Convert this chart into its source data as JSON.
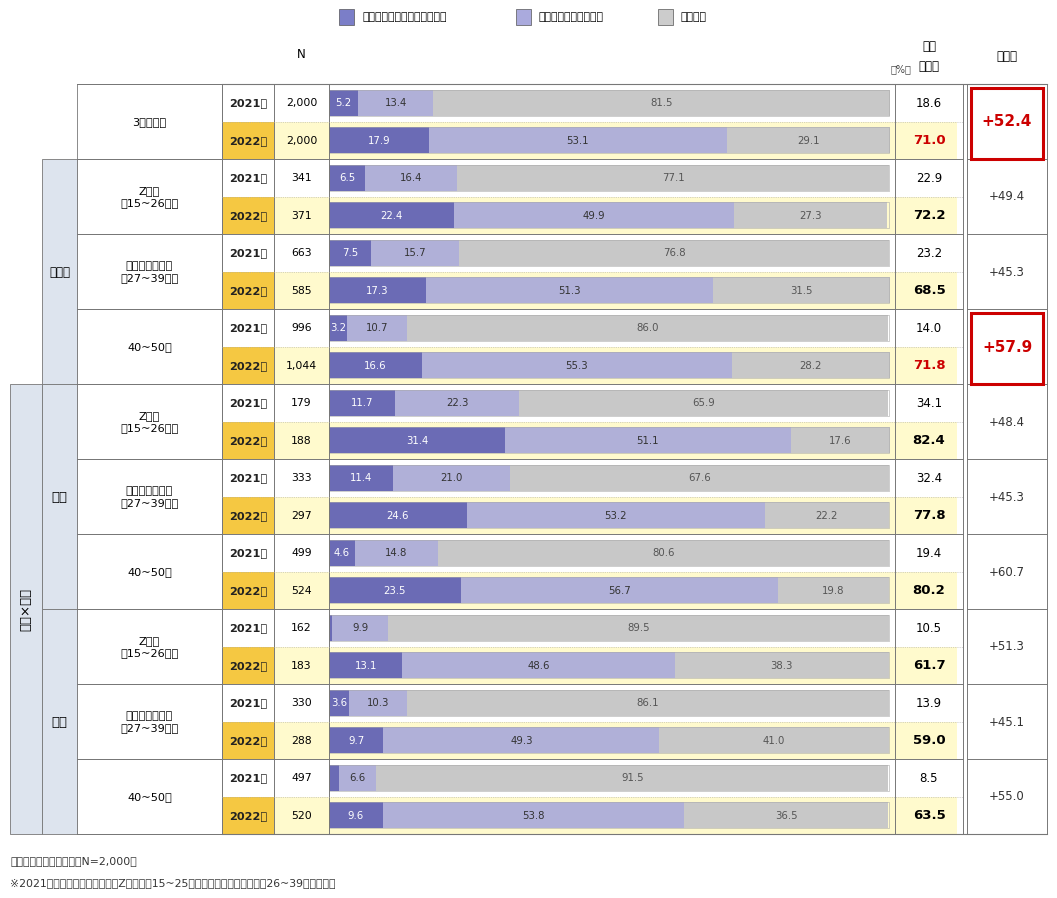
{
  "legend_items": [
    "どのようなものか知っている",
    "見聞きしたことがある",
    "知らない"
  ],
  "legend_colors": [
    "#7B7EC8",
    "#AAAADD",
    "#CCCCCC"
  ],
  "rows": [
    {
      "group1": "3世代全体",
      "group2": "",
      "group3": "",
      "year": "2021年",
      "N": "2,000",
      "v1": 5.2,
      "v2": 13.4,
      "v3": 81.5,
      "ninchi": "18.6",
      "ninchi_bold": false,
      "ninchi_red": false,
      "zennenhi": "+52.4",
      "zennenhi_bold": true,
      "zennenhi_red": true,
      "zennenhi_box": true,
      "row_bg": "#FFFFFF",
      "year_bg": "#FFFFFF"
    },
    {
      "group1": "3世代全体",
      "group2": "",
      "group3": "",
      "year": "2022年",
      "N": "2,000",
      "v1": 17.9,
      "v2": 53.1,
      "v3": 29.1,
      "ninchi": "71.0",
      "ninchi_bold": true,
      "ninchi_red": true,
      "zennenhi": "+52.4",
      "zennenhi_bold": true,
      "zennenhi_red": true,
      "zennenhi_box": true,
      "row_bg": "#FFFACD",
      "year_bg": "#F5C842"
    },
    {
      "group1": "Z世代\n（15~26歳）",
      "group2": "世代別",
      "group3": "",
      "year": "2021年",
      "N": "341",
      "v1": 6.5,
      "v2": 16.4,
      "v3": 77.1,
      "ninchi": "22.9",
      "ninchi_bold": false,
      "ninchi_red": false,
      "zennenhi": "+49.4",
      "zennenhi_bold": false,
      "zennenhi_red": false,
      "zennenhi_box": false,
      "row_bg": "#FFFFFF",
      "year_bg": "#FFFFFF"
    },
    {
      "group1": "Z世代\n（15~26歳）",
      "group2": "世代別",
      "group3": "",
      "year": "2022年",
      "N": "371",
      "v1": 22.4,
      "v2": 49.9,
      "v3": 27.3,
      "ninchi": "72.2",
      "ninchi_bold": true,
      "ninchi_red": false,
      "zennenhi": "+49.4",
      "zennenhi_bold": false,
      "zennenhi_red": false,
      "zennenhi_box": false,
      "row_bg": "#FFFACD",
      "year_bg": "#F5C842"
    },
    {
      "group1": "ミレニアル世代\n（27~39歳）",
      "group2": "世代別",
      "group3": "",
      "year": "2021年",
      "N": "663",
      "v1": 7.5,
      "v2": 15.7,
      "v3": 76.8,
      "ninchi": "23.2",
      "ninchi_bold": false,
      "ninchi_red": false,
      "zennenhi": "+45.3",
      "zennenhi_bold": false,
      "zennenhi_red": false,
      "zennenhi_box": false,
      "row_bg": "#FFFFFF",
      "year_bg": "#FFFFFF"
    },
    {
      "group1": "ミレニアル世代\n（27~39歳）",
      "group2": "世代別",
      "group3": "",
      "year": "2022年",
      "N": "585",
      "v1": 17.3,
      "v2": 51.3,
      "v3": 31.5,
      "ninchi": "68.5",
      "ninchi_bold": true,
      "ninchi_red": false,
      "zennenhi": "+45.3",
      "zennenhi_bold": false,
      "zennenhi_red": false,
      "zennenhi_box": false,
      "row_bg": "#FFFACD",
      "year_bg": "#F5C842"
    },
    {
      "group1": "40~50代",
      "group2": "世代別",
      "group3": "",
      "year": "2021年",
      "N": "996",
      "v1": 3.2,
      "v2": 10.7,
      "v3": 86.0,
      "ninchi": "14.0",
      "ninchi_bold": false,
      "ninchi_red": false,
      "zennenhi": "+57.9",
      "zennenhi_bold": true,
      "zennenhi_red": true,
      "zennenhi_box": true,
      "row_bg": "#FFFFFF",
      "year_bg": "#FFFFFF"
    },
    {
      "group1": "40~50代",
      "group2": "世代別",
      "group3": "",
      "year": "2022年",
      "N": "1,044",
      "v1": 16.6,
      "v2": 55.3,
      "v3": 28.2,
      "ninchi": "71.8",
      "ninchi_bold": true,
      "ninchi_red": true,
      "zennenhi": "+57.9",
      "zennenhi_bold": true,
      "zennenhi_red": true,
      "zennenhi_box": true,
      "row_bg": "#FFFACD",
      "year_bg": "#F5C842"
    },
    {
      "group1": "Z世代\n（15~26歳）",
      "group2": "男性",
      "group3": "世代×性別",
      "year": "2021年",
      "N": "179",
      "v1": 11.7,
      "v2": 22.3,
      "v3": 65.9,
      "ninchi": "34.1",
      "ninchi_bold": false,
      "ninchi_red": false,
      "zennenhi": "+48.4",
      "zennenhi_bold": false,
      "zennenhi_red": false,
      "zennenhi_box": false,
      "row_bg": "#FFFFFF",
      "year_bg": "#FFFFFF"
    },
    {
      "group1": "Z世代\n（15~26歳）",
      "group2": "男性",
      "group3": "世代×性別",
      "year": "2022年",
      "N": "188",
      "v1": 31.4,
      "v2": 51.1,
      "v3": 17.6,
      "ninchi": "82.4",
      "ninchi_bold": true,
      "ninchi_red": false,
      "zennenhi": "+48.4",
      "zennenhi_bold": false,
      "zennenhi_red": false,
      "zennenhi_box": false,
      "row_bg": "#FFFACD",
      "year_bg": "#F5C842"
    },
    {
      "group1": "ミレニアル世代\n（27~39歳）",
      "group2": "男性",
      "group3": "世代×性別",
      "year": "2021年",
      "N": "333",
      "v1": 11.4,
      "v2": 21.0,
      "v3": 67.6,
      "ninchi": "32.4",
      "ninchi_bold": false,
      "ninchi_red": false,
      "zennenhi": "+45.3",
      "zennenhi_bold": false,
      "zennenhi_red": false,
      "zennenhi_box": false,
      "row_bg": "#FFFFFF",
      "year_bg": "#FFFFFF"
    },
    {
      "group1": "ミレニアル世代\n（27~39歳）",
      "group2": "男性",
      "group3": "世代×性別",
      "year": "2022年",
      "N": "297",
      "v1": 24.6,
      "v2": 53.2,
      "v3": 22.2,
      "ninchi": "77.8",
      "ninchi_bold": true,
      "ninchi_red": false,
      "zennenhi": "+45.3",
      "zennenhi_bold": false,
      "zennenhi_red": false,
      "zennenhi_box": false,
      "row_bg": "#FFFACD",
      "year_bg": "#F5C842"
    },
    {
      "group1": "40~50代",
      "group2": "男性",
      "group3": "世代×性別",
      "year": "2021年",
      "N": "499",
      "v1": 4.6,
      "v2": 14.8,
      "v3": 80.6,
      "ninchi": "19.4",
      "ninchi_bold": false,
      "ninchi_red": false,
      "zennenhi": "+60.7",
      "zennenhi_bold": false,
      "zennenhi_red": false,
      "zennenhi_box": false,
      "row_bg": "#FFFFFF",
      "year_bg": "#FFFFFF"
    },
    {
      "group1": "40~50代",
      "group2": "男性",
      "group3": "世代×性別",
      "year": "2022年",
      "N": "524",
      "v1": 23.5,
      "v2": 56.7,
      "v3": 19.8,
      "ninchi": "80.2",
      "ninchi_bold": true,
      "ninchi_red": false,
      "zennenhi": "+60.7",
      "zennenhi_bold": false,
      "zennenhi_red": false,
      "zennenhi_box": false,
      "row_bg": "#FFFACD",
      "year_bg": "#F5C842"
    },
    {
      "group1": "Z世代\n（15~26歳）",
      "group2": "女性",
      "group3": "世代×性別",
      "year": "2021年",
      "N": "162",
      "v1": 0.6,
      "v2": 9.9,
      "v3": 89.5,
      "ninchi": "10.5",
      "ninchi_bold": false,
      "ninchi_red": false,
      "zennenhi": "+51.3",
      "zennenhi_bold": false,
      "zennenhi_red": false,
      "zennenhi_box": false,
      "row_bg": "#FFFFFF",
      "year_bg": "#FFFFFF"
    },
    {
      "group1": "Z世代\n（15~26歳）",
      "group2": "女性",
      "group3": "世代×性別",
      "year": "2022年",
      "N": "183",
      "v1": 13.1,
      "v2": 48.6,
      "v3": 38.3,
      "ninchi": "61.7",
      "ninchi_bold": true,
      "ninchi_red": false,
      "zennenhi": "+51.3",
      "zennenhi_bold": false,
      "zennenhi_red": false,
      "zennenhi_box": false,
      "row_bg": "#FFFACD",
      "year_bg": "#F5C842"
    },
    {
      "group1": "ミレニアル世代\n（27~39歳）",
      "group2": "女性",
      "group3": "世代×性別",
      "year": "2021年",
      "N": "330",
      "v1": 3.6,
      "v2": 10.3,
      "v3": 86.1,
      "ninchi": "13.9",
      "ninchi_bold": false,
      "ninchi_red": false,
      "zennenhi": "+45.1",
      "zennenhi_bold": false,
      "zennenhi_red": false,
      "zennenhi_box": false,
      "row_bg": "#FFFFFF",
      "year_bg": "#FFFFFF"
    },
    {
      "group1": "ミレニアル世代\n（27~39歳）",
      "group2": "女性",
      "group3": "世代×性別",
      "year": "2022年",
      "N": "288",
      "v1": 9.7,
      "v2": 49.3,
      "v3": 41.0,
      "ninchi": "59.0",
      "ninchi_bold": true,
      "ninchi_red": false,
      "zennenhi": "+45.1",
      "zennenhi_bold": false,
      "zennenhi_red": false,
      "zennenhi_box": false,
      "row_bg": "#FFFACD",
      "year_bg": "#F5C842"
    },
    {
      "group1": "40~50代",
      "group2": "女性",
      "group3": "世代×性別",
      "year": "2021年",
      "N": "497",
      "v1": 1.8,
      "v2": 6.6,
      "v3": 91.5,
      "ninchi": "8.5",
      "ninchi_bold": false,
      "ninchi_red": false,
      "zennenhi": "+55.0",
      "zennenhi_bold": false,
      "zennenhi_red": false,
      "zennenhi_box": false,
      "row_bg": "#FFFFFF",
      "year_bg": "#FFFFFF"
    },
    {
      "group1": "40~50代",
      "group2": "女性",
      "group3": "世代×性別",
      "year": "2022年",
      "N": "520",
      "v1": 9.6,
      "v2": 53.8,
      "v3": 36.5,
      "ninchi": "63.5",
      "ninchi_bold": true,
      "ninchi_red": false,
      "zennenhi": "+55.0",
      "zennenhi_bold": false,
      "zennenhi_red": false,
      "zennenhi_box": false,
      "row_bg": "#FFFACD",
      "year_bg": "#F5C842"
    }
  ],
  "bar_color1": "#6B6BB5",
  "bar_color2": "#B0B0D8",
  "bar_color3": "#C8C8C8",
  "footer1": "基数：調査対象者全体（N=2,000）",
  "footer2": "※2021年の年齢区分について、Z世代は「15~25歳」、ミレニアル世代は「26~39歳」で設定"
}
